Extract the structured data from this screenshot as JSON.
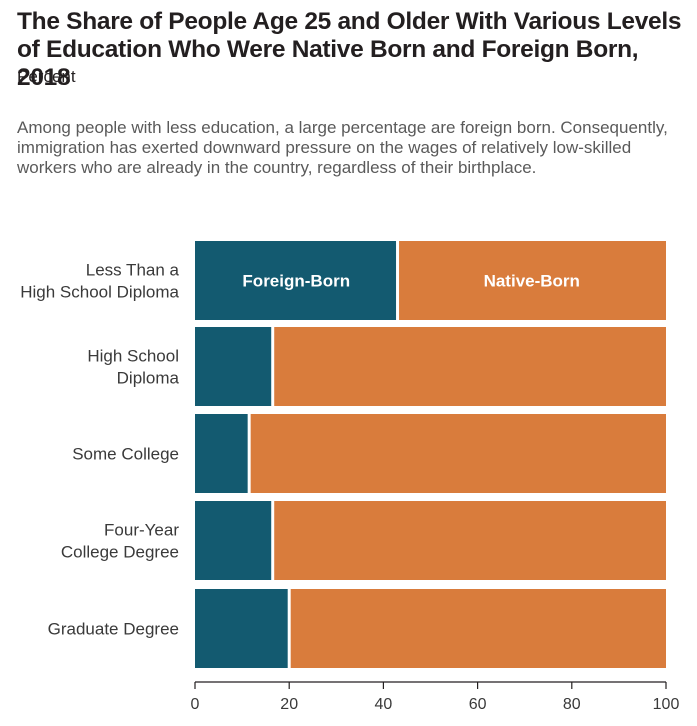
{
  "header": {
    "title": "The Share of People Age 25 and Older With Various Levels of Education Who Were Native Born and Foreign Born, 2018",
    "subtitle": "Percent",
    "annotation": "Among people with less education, a large percentage are foreign born. Consequently, immigration has exerted downward pressure on the wages of relatively low-skilled workers who are already in the country, regardless of their birthplace."
  },
  "chart_data": {
    "type": "bar",
    "orientation": "horizontal",
    "stacked": true,
    "categories": [
      [
        "Less Than a",
        "High School Diploma"
      ],
      [
        "High School",
        "Diploma"
      ],
      [
        "Some College"
      ],
      [
        "Four-Year",
        "College Degree"
      ],
      [
        "Graduate Degree"
      ]
    ],
    "series": [
      {
        "name": "Foreign-Born",
        "color": "#135a70",
        "values": [
          43,
          16.5,
          11.5,
          16.5,
          20
        ]
      },
      {
        "name": "Native-Born",
        "color": "#d97c3c",
        "values": [
          57,
          83.5,
          88.5,
          83.5,
          80
        ]
      }
    ],
    "xlim": [
      0,
      100
    ],
    "xticks": [
      0,
      20,
      40,
      60,
      80,
      100
    ],
    "grid": false,
    "legend": "inside first bar"
  }
}
